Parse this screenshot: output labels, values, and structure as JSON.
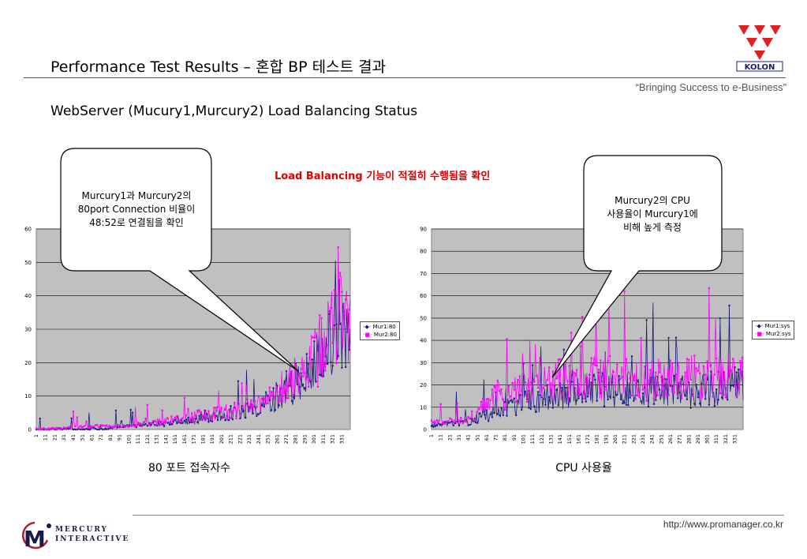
{
  "header": {
    "title": "Performance Test Results –  혼합 BP 테스트 결과",
    "tagline": "“Bringing Success to e-Business”",
    "subtitle": "WebServer (Mucury1,Murcury2) Load Balancing Status",
    "load_note": "Load Balancing 기능이 적절히 수행됨을 확인",
    "brand_logo": "KOLON"
  },
  "callouts": {
    "left": [
      "Murcury1과 Murcury2의",
      "80port Connection 비율이",
      "48:52로 연결됨을 확인"
    ],
    "right": [
      "Murcury2의 CPU",
      "사용율이 Murcury1에",
      "비해 높게 측정"
    ]
  },
  "captions": {
    "left": "80 포트 접속자수",
    "right": "CPU 사용율"
  },
  "footer": {
    "url": "http://www.promanager.co.kr",
    "logo_line1": "MERCURY",
    "logo_line2": "INTERACTIVE"
  },
  "colors": {
    "series1": "#1a1a80",
    "series2": "#ff00ff",
    "plot_bg": "#c0c0c0",
    "note_red": "#e00000",
    "kolon_red": "#e02020"
  },
  "chart_data": [
    {
      "type": "line",
      "x_start": 1,
      "x_end": 340,
      "x_tick_step": 10,
      "ylim": [
        0,
        60
      ],
      "y_ticks": [
        0,
        10,
        20,
        30,
        40,
        50,
        60
      ],
      "grid": true,
      "legend_position": "right",
      "series": [
        {
          "name": "Mur1:80",
          "anchors": [
            [
              1,
              0
            ],
            [
              60,
              0
            ],
            [
              100,
              1
            ],
            [
              150,
              2
            ],
            [
              200,
              4
            ],
            [
              240,
              6
            ],
            [
              270,
              12
            ],
            [
              290,
              15
            ],
            [
              300,
              18
            ],
            [
              310,
              24
            ],
            [
              320,
              28
            ],
            [
              330,
              32
            ],
            [
              340,
              26
            ]
          ]
        },
        {
          "name": "Mur2:80",
          "anchors": [
            [
              1,
              0
            ],
            [
              60,
              1
            ],
            [
              100,
              1
            ],
            [
              150,
              3
            ],
            [
              200,
              5
            ],
            [
              240,
              7
            ],
            [
              270,
              13
            ],
            [
              290,
              16
            ],
            [
              300,
              20
            ],
            [
              310,
              26
            ],
            [
              320,
              30
            ],
            [
              330,
              42
            ],
            [
              340,
              28
            ]
          ]
        }
      ]
    },
    {
      "type": "line",
      "x_start": 1,
      "x_end": 340,
      "x_tick_step": 10,
      "ylim": [
        0,
        90
      ],
      "y_ticks": [
        0,
        10,
        20,
        30,
        40,
        50,
        60,
        70,
        80,
        90
      ],
      "grid": true,
      "legend_position": "right",
      "series": [
        {
          "name": "Mur1:sys",
          "anchors": [
            [
              1,
              2
            ],
            [
              40,
              3
            ],
            [
              70,
              8
            ],
            [
              100,
              12
            ],
            [
              140,
              15
            ],
            [
              180,
              18
            ],
            [
              220,
              18
            ],
            [
              260,
              17
            ],
            [
              300,
              18
            ],
            [
              340,
              20
            ]
          ]
        },
        {
          "name": "Mur2:sys",
          "anchors": [
            [
              1,
              3
            ],
            [
              40,
              4
            ],
            [
              70,
              14
            ],
            [
              100,
              18
            ],
            [
              140,
              22
            ],
            [
              180,
              24
            ],
            [
              220,
              23
            ],
            [
              260,
              22
            ],
            [
              300,
              24
            ],
            [
              340,
              26
            ]
          ]
        }
      ]
    }
  ]
}
